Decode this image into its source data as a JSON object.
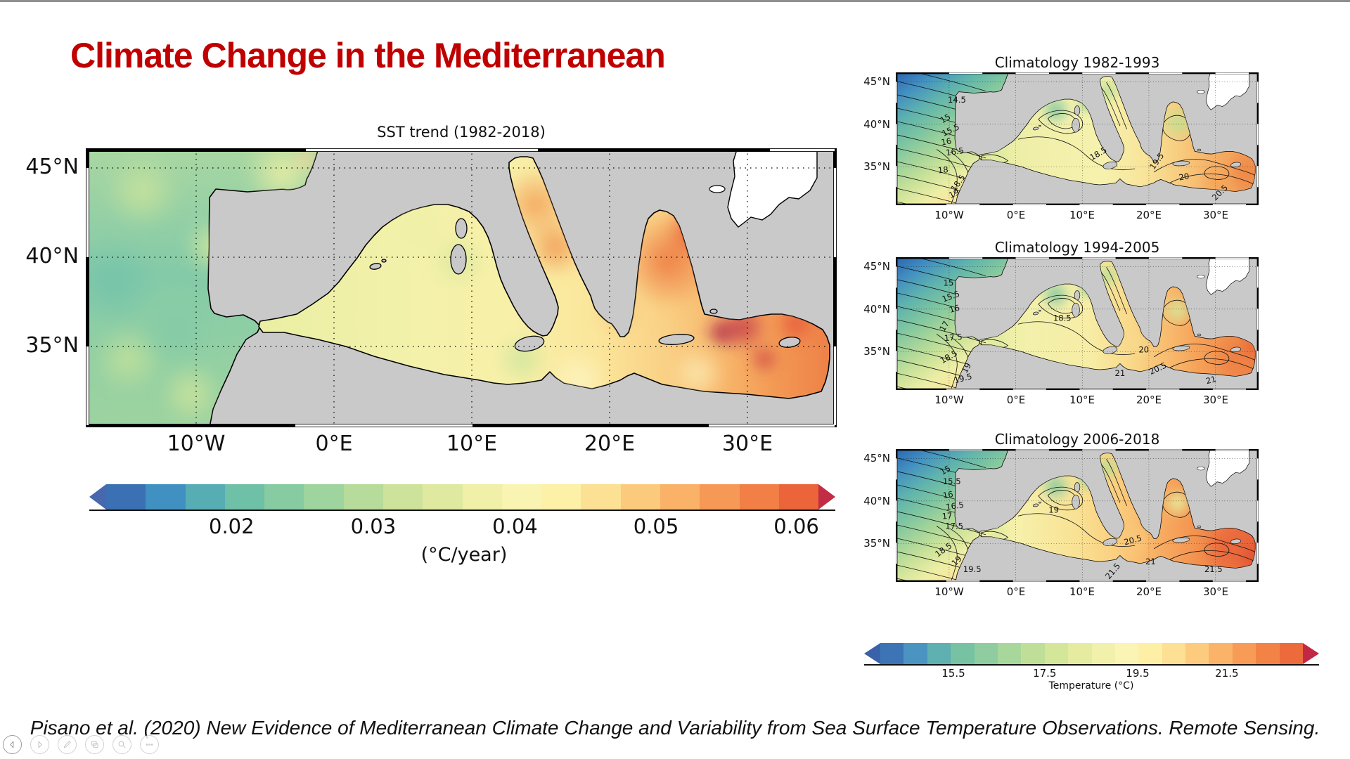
{
  "slide": {
    "title": "Climate Change in the Mediterranean",
    "title_color": "#C00000",
    "citation": "Pisano et al. (2020) New Evidence of Mediterranean Climate Change and Variability from Sea Surface Temperature Observations. Remote Sensing."
  },
  "axes": {
    "lat_labels": [
      "45°N",
      "40°N",
      "35°N"
    ],
    "lon_labels": [
      "10°W",
      "0°E",
      "10°E",
      "20°E",
      "30°E"
    ]
  },
  "main_map": {
    "title": "SST trend (1982-2018)",
    "colorbar": {
      "ticks": [
        "0.02",
        "0.03",
        "0.04",
        "0.05",
        "0.06"
      ],
      "unit": "(°C/year)",
      "arrow_left": "#4767ae",
      "arrow_right": "#c22d45",
      "palette": [
        "#3b70b4",
        "#4090c1",
        "#57adb4",
        "#6ec0a6",
        "#86cba1",
        "#9ed49d",
        "#b6db9a",
        "#cde29a",
        "#dfe9a0",
        "#f0f0a9",
        "#f9f4b1",
        "#fdf0a7",
        "#fce093",
        "#fbca7d",
        "#f9b268",
        "#f69956",
        "#f17f46",
        "#ec643a"
      ]
    }
  },
  "climatology": {
    "maps": [
      {
        "title": "Climatology 1982-1993",
        "contour_labels": [
          "14.5",
          "15",
          "15.5",
          "16",
          "16.5",
          "18",
          "18.5",
          "19",
          "18.5",
          "19.5",
          "20",
          "20.5"
        ]
      },
      {
        "title": "Climatology 1994-2005",
        "contour_labels": [
          "15",
          "15.5",
          "16",
          "17",
          "17.5",
          "18.5",
          "19",
          "19.5",
          "18.5",
          "20",
          "20.5",
          "21",
          "21"
        ]
      },
      {
        "title": "Climatology 2006-2018",
        "contour_labels": [
          "15",
          "15.5",
          "16",
          "16.5",
          "17",
          "17.5",
          "18.5",
          "19",
          "19.5",
          "19",
          "20.5",
          "21",
          "21.5",
          "21.5"
        ]
      }
    ],
    "colorbar": {
      "ticks": [
        "15.5",
        "17.5",
        "19.5",
        "21.5"
      ],
      "label": "Temperature (°C)",
      "arrow_left": "#3a62aa",
      "arrow_right": "#c22844",
      "palette": [
        "#3d74b6",
        "#4b93c0",
        "#5fb0b0",
        "#76c2a3",
        "#8fcda0",
        "#a8d79b",
        "#bfdf99",
        "#d4e69a",
        "#e5eca0",
        "#f2f1ac",
        "#fbf5b5",
        "#fdf0a6",
        "#fde094",
        "#fccb7e",
        "#fab369",
        "#f79b57",
        "#f28245",
        "#ec6a3c"
      ]
    }
  },
  "map_colors": {
    "land": "#c9c9c9",
    "coastline": "#000000",
    "no_data": "#ffffff"
  },
  "viewer_controls": [
    {
      "name": "previous-slide"
    },
    {
      "name": "next-slide"
    },
    {
      "name": "pen"
    },
    {
      "name": "slide-navigator"
    },
    {
      "name": "zoom"
    },
    {
      "name": "more-options"
    }
  ]
}
